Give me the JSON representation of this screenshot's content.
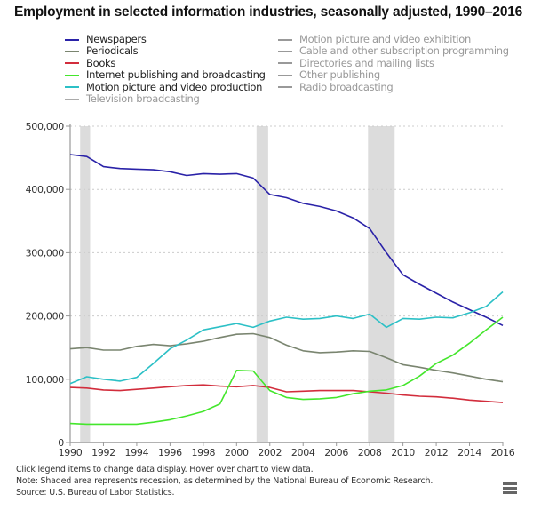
{
  "chart_data": {
    "type": "line",
    "title": "Employment in selected information industries, seasonally adjusted, 1990–2016",
    "xlabel": "",
    "ylabel": "",
    "xlim": [
      1990,
      2016
    ],
    "ylim": [
      0,
      500000
    ],
    "grid": true,
    "legend_position": "top",
    "x_ticks": [
      1990,
      1992,
      1994,
      1996,
      1998,
      2000,
      2002,
      2004,
      2006,
      2008,
      2010,
      2012,
      2014,
      2016
    ],
    "x_tick_labels": [
      "1990",
      "1992",
      "1994",
      "1996",
      "1998",
      "2000",
      "2002",
      "2004",
      "2006",
      "2008",
      "2010",
      "2012",
      "2014",
      "2016"
    ],
    "y_ticks": [
      0,
      100000,
      200000,
      300000,
      400000,
      500000
    ],
    "y_tick_labels": [
      "0",
      "100,000",
      "200,000",
      "300,000",
      "400,000",
      "500,000"
    ],
    "recessions": [
      [
        1990.6,
        1991.2
      ],
      [
        2001.2,
        2001.9
      ],
      [
        2007.9,
        2009.5
      ]
    ],
    "x": [
      1990,
      1991,
      1992,
      1993,
      1994,
      1995,
      1996,
      1997,
      1998,
      1999,
      2000,
      2001,
      2002,
      2003,
      2004,
      2005,
      2006,
      2007,
      2008,
      2009,
      2010,
      2011,
      2012,
      2013,
      2014,
      2015,
      2016
    ],
    "series": [
      {
        "name": "Newspapers",
        "color": "#2a22a8",
        "visible": true,
        "values": [
          455000,
          452000,
          436000,
          433000,
          432000,
          431000,
          428000,
          422000,
          425000,
          424000,
          425000,
          418000,
          392000,
          387000,
          378000,
          373000,
          366000,
          355000,
          338000,
          300000,
          265000,
          250000,
          236000,
          222000,
          210000,
          198000,
          185000
        ]
      },
      {
        "name": "Periodicals",
        "color": "#7a8570",
        "visible": true,
        "values": [
          148000,
          150000,
          146000,
          146000,
          152000,
          155000,
          153000,
          156000,
          160000,
          166000,
          171000,
          172000,
          166000,
          154000,
          145000,
          142000,
          143000,
          145000,
          144000,
          134000,
          123000,
          119000,
          114000,
          110000,
          105000,
          100000,
          96000
        ]
      },
      {
        "name": "Books",
        "color": "#d22d3c",
        "visible": true,
        "values": [
          87000,
          86000,
          83000,
          82000,
          84000,
          86000,
          88000,
          90000,
          91000,
          89000,
          88000,
          90000,
          87000,
          80000,
          81000,
          82000,
          82000,
          82000,
          80000,
          78000,
          75000,
          73000,
          72000,
          70000,
          67000,
          65000,
          63000
        ]
      },
      {
        "name": "Internet publishing and broadcasting",
        "color": "#44e62c",
        "visible": true,
        "values": [
          30000,
          29000,
          29000,
          29000,
          29000,
          32000,
          36000,
          42000,
          49000,
          61000,
          114000,
          113000,
          82000,
          71000,
          68000,
          69000,
          71000,
          77000,
          81000,
          83000,
          90000,
          105000,
          125000,
          138000,
          157000,
          178000,
          198000
        ]
      },
      {
        "name": "Motion picture and video production",
        "color": "#2cc0c6",
        "visible": true,
        "values": [
          93000,
          104000,
          100000,
          97000,
          103000,
          125000,
          148000,
          162000,
          178000,
          183000,
          188000,
          182000,
          192000,
          198000,
          195000,
          196000,
          200000,
          196000,
          203000,
          182000,
          196000,
          195000,
          198000,
          197000,
          205000,
          215000,
          238000
        ]
      },
      {
        "name": "Television broadcasting",
        "color": "#aaaaaa",
        "visible": false,
        "values": []
      },
      {
        "name": "Motion picture and video exhibition",
        "color": "#aaaaaa",
        "visible": false,
        "values": []
      },
      {
        "name": "Cable and other subscription programming",
        "color": "#aaaaaa",
        "visible": false,
        "values": []
      },
      {
        "name": "Directories and mailing lists",
        "color": "#aaaaaa",
        "visible": false,
        "values": []
      },
      {
        "name": "Other publishing",
        "color": "#aaaaaa",
        "visible": false,
        "values": []
      },
      {
        "name": "Radio broadcasting",
        "color": "#aaaaaa",
        "visible": false,
        "values": []
      }
    ]
  },
  "legend": {
    "left": [
      {
        "label": "Newspapers",
        "color": "#2a22a8",
        "visible": true
      },
      {
        "label": "Periodicals",
        "color": "#7a8570",
        "visible": true
      },
      {
        "label": "Books",
        "color": "#d22d3c",
        "visible": true
      },
      {
        "label": "Internet publishing and broadcasting",
        "color": "#44e62c",
        "visible": true
      },
      {
        "label": "Motion picture and video production",
        "color": "#2cc0c6",
        "visible": true
      },
      {
        "label": "Television broadcasting",
        "color": "#aaaaaa",
        "visible": false
      }
    ],
    "right": [
      {
        "label": "Motion picture and video exhibition",
        "color": "#999999",
        "visible": false
      },
      {
        "label": "Cable and other subscription programming",
        "color": "#999999",
        "visible": false
      },
      {
        "label": "Directories and mailing lists",
        "color": "#999999",
        "visible": false
      },
      {
        "label": "Other publishing",
        "color": "#999999",
        "visible": false
      },
      {
        "label": "Radio broadcasting",
        "color": "#999999",
        "visible": false
      }
    ]
  },
  "notes": {
    "line1": "Click legend items to change data display. Hover over chart to view data.",
    "line2": "Note: Shaded area represents recession, as determined by the National Bureau of Economic Research.",
    "line3": "Source: U.S. Bureau of Labor Statistics."
  },
  "menu": {
    "icon": "hamburger-menu-icon"
  },
  "colors": {
    "recession": "#dcdcdc",
    "grid": "#cccccc",
    "axis": "#999999"
  }
}
